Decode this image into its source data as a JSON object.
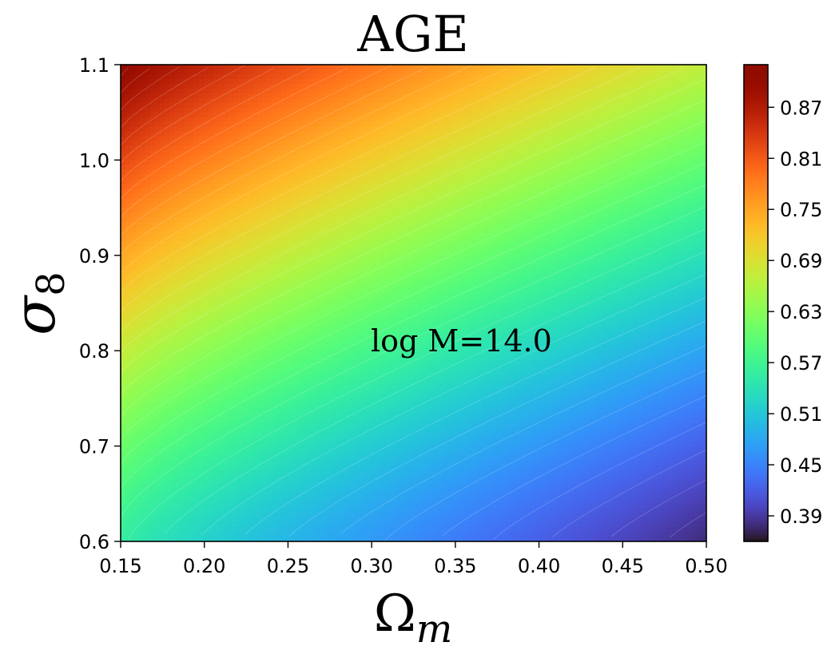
{
  "chart_data": {
    "type": "heatmap",
    "title": "AGE",
    "xlabel": "Ω",
    "xlabel_sub": "m",
    "ylabel": "σ",
    "ylabel_sub": "8",
    "xlim": [
      0.15,
      0.5
    ],
    "ylim": [
      0.6,
      1.1
    ],
    "x_ticks": [
      "0.15",
      "0.20",
      "0.25",
      "0.30",
      "0.35",
      "0.40",
      "0.45",
      "0.50"
    ],
    "y_ticks": [
      "0.6",
      "0.7",
      "0.8",
      "0.9",
      "1.0",
      "1.1"
    ],
    "colorbar": {
      "min": 0.36,
      "max": 0.92,
      "ticks": [
        "0.39",
        "0.45",
        "0.51",
        "0.57",
        "0.63",
        "0.69",
        "0.75",
        "0.81",
        "0.87"
      ],
      "colormap": "turbo"
    },
    "annotation": "log M=14.0",
    "corner_values": {
      "top_left": 0.91,
      "top_right": 0.67,
      "bottom_left": 0.56,
      "bottom_right": 0.38
    },
    "grid": false
  }
}
